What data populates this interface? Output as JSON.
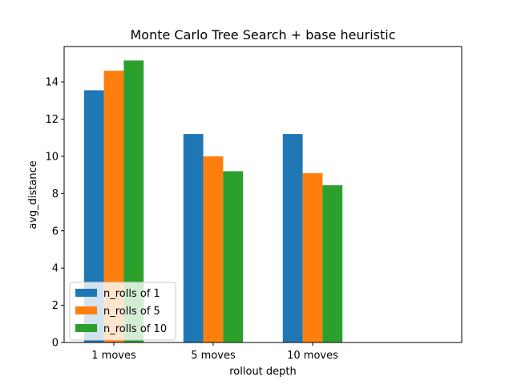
{
  "chart_data": {
    "type": "bar",
    "title": "Monte Carlo Tree Search + base heuristic",
    "xlabel": "rollout depth",
    "ylabel": "avg_distance",
    "categories": [
      "1 moves",
      "5 moves",
      "10 moves"
    ],
    "series": [
      {
        "name": "n_rolls of 1",
        "color": "#1f77b4",
        "values": [
          13.55,
          11.2,
          11.2
        ]
      },
      {
        "name": "n_rolls of 5",
        "color": "#ff7f0e",
        "values": [
          14.6,
          10.0,
          9.1
        ]
      },
      {
        "name": "n_rolls of 10",
        "color": "#2ca02c",
        "values": [
          15.15,
          9.2,
          8.45
        ]
      }
    ],
    "ylim": [
      0,
      15.9
    ],
    "yticks": [
      0,
      2,
      4,
      6,
      8,
      10,
      12,
      14
    ],
    "grid": false,
    "legend_position": "lower-left"
  }
}
